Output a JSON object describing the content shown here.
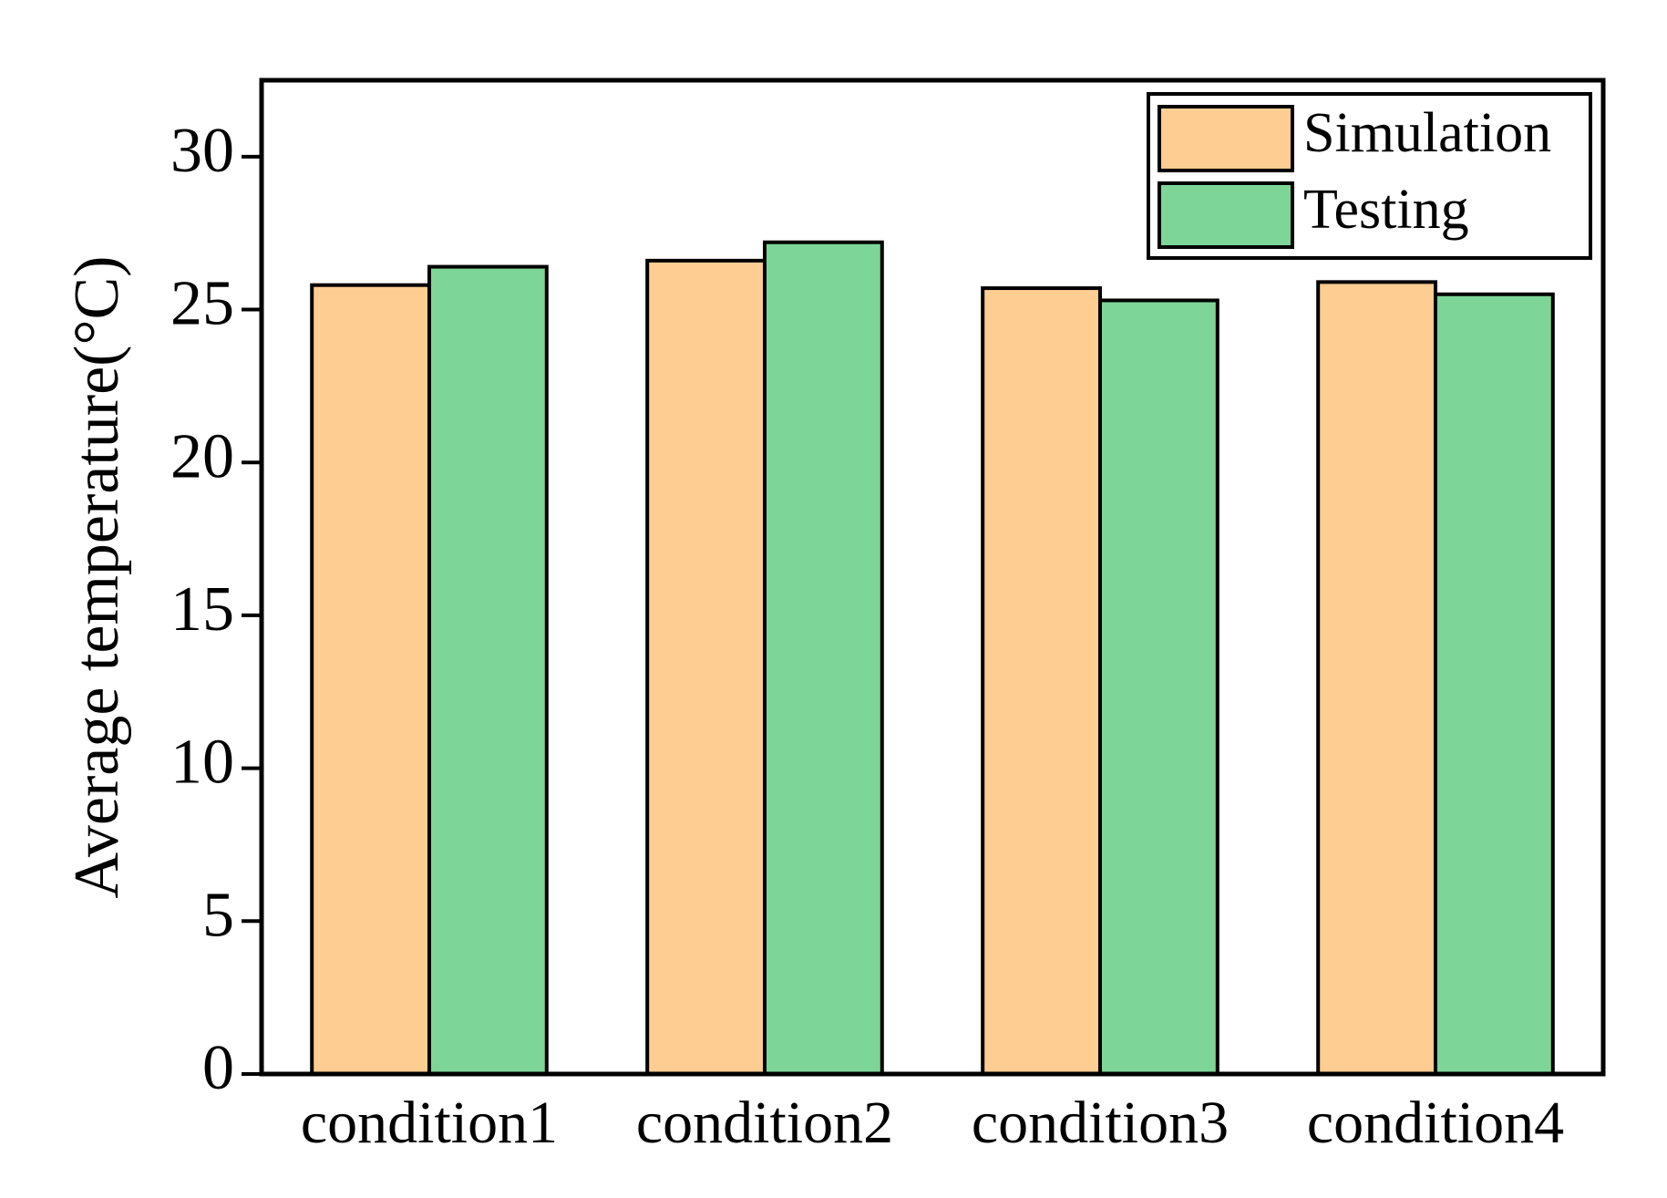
{
  "chart_data": {
    "type": "bar",
    "y_label": "Average temperature(°C)",
    "categories": [
      "condition1",
      "condition2",
      "condition3",
      "condition4"
    ],
    "series": [
      {
        "name": "Simulation",
        "color": "#fdcd92",
        "values": [
          25.8,
          26.6,
          25.7,
          25.9
        ]
      },
      {
        "name": "Testing",
        "color": "#7dd698",
        "values": [
          26.4,
          27.2,
          25.3,
          25.5
        ]
      }
    ],
    "ylim": [
      0,
      32.5
    ],
    "yticks": [
      0,
      5,
      10,
      15,
      20,
      25,
      30
    ],
    "legend": "upper right"
  }
}
